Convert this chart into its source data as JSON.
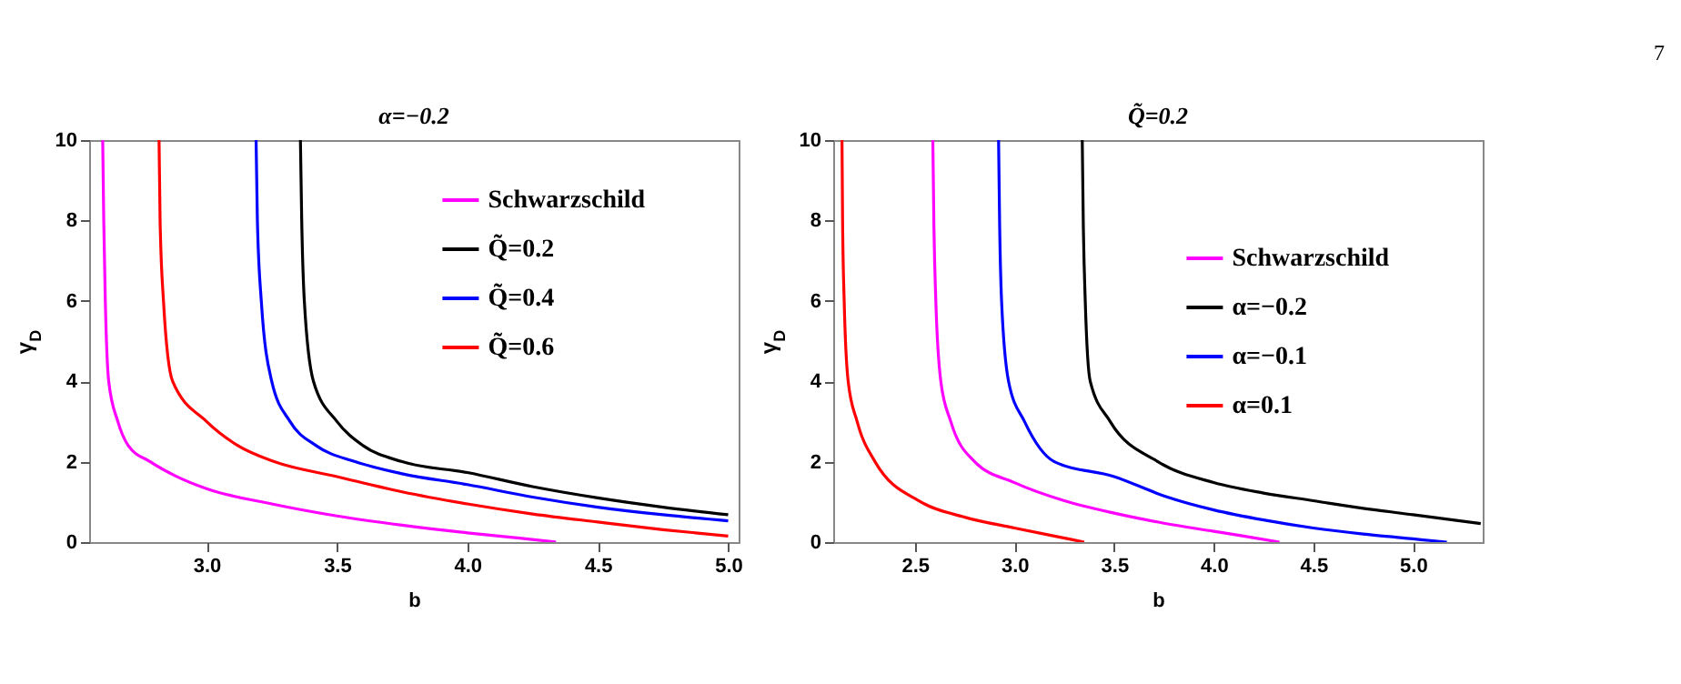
{
  "chart_data": [
    {
      "type": "line",
      "title": "α=−0.2",
      "xlabel": "b",
      "ylabel": "γ$_{D}$",
      "xlim": [
        2.55,
        5.04
      ],
      "ylim": [
        0,
        10
      ],
      "xticks": [
        {
          "value": 3,
          "label": "3.0"
        },
        {
          "value": 3.5,
          "label": "3.5"
        },
        {
          "value": 4,
          "label": "4.0"
        },
        {
          "value": 4.5,
          "label": "4.5"
        },
        {
          "value": 5,
          "label": "5.0"
        }
      ],
      "yticks": [
        0,
        2,
        4,
        6,
        8,
        10
      ],
      "grid": false,
      "legend": "top right",
      "series": [
        {
          "name": "Schwarzschild",
          "color": "#ff00ff",
          "x": [
            2.602,
            2.606,
            2.612,
            2.625,
            2.66,
            2.7,
            2.784,
            2.88,
            3.0,
            3.25,
            3.5,
            3.75,
            4.0,
            4.2,
            4.34
          ],
          "values": [
            10,
            8,
            6,
            4,
            3,
            2.4,
            2.0,
            1.65,
            1.33,
            0.95,
            0.65,
            0.42,
            0.23,
            0.1,
            0
          ]
        },
        {
          "name": "Q̃=0.2",
          "color": "#000000",
          "x": [
            3.36,
            3.365,
            3.375,
            3.41,
            3.5,
            3.6,
            3.75,
            4.0,
            4.25,
            4.5,
            4.75,
            5.0
          ],
          "values": [
            10,
            8,
            6,
            4,
            3,
            2.4,
            2.0,
            1.73,
            1.38,
            1.1,
            0.87,
            0.68
          ]
        },
        {
          "name": "Q̃=0.4",
          "color": "#0000ff",
          "x": [
            3.19,
            3.195,
            3.21,
            3.25,
            3.32,
            3.42,
            3.57,
            3.75,
            4.0,
            4.25,
            4.5,
            4.75,
            5.0
          ],
          "values": [
            10,
            8,
            6,
            4,
            3,
            2.4,
            2.0,
            1.7,
            1.43,
            1.12,
            0.87,
            0.68,
            0.53
          ]
        },
        {
          "name": "Q̃=0.6",
          "color": "#ff0000",
          "x": [
            2.818,
            2.822,
            2.835,
            2.87,
            3.0,
            3.12,
            3.26,
            3.5,
            3.75,
            4.0,
            4.25,
            4.5,
            4.75,
            5.0
          ],
          "values": [
            10,
            8,
            6,
            4,
            3,
            2.4,
            2.0,
            1.63,
            1.25,
            0.95,
            0.7,
            0.5,
            0.31,
            0.15
          ]
        }
      ]
    },
    {
      "type": "line",
      "title": "Q̃=0.2",
      "xlabel": "b",
      "ylabel": "γ$_{D}$",
      "xlim": [
        2.09,
        5.35
      ],
      "ylim": [
        0,
        10
      ],
      "xticks": [
        {
          "value": 2.5,
          "label": "2.5"
        },
        {
          "value": 3,
          "label": "3.0"
        },
        {
          "value": 3.5,
          "label": "3.5"
        },
        {
          "value": 4,
          "label": "4.0"
        },
        {
          "value": 4.5,
          "label": "4.5"
        },
        {
          "value": 5,
          "label": "5.0"
        }
      ],
      "yticks": [
        0,
        2,
        4,
        6,
        8,
        10
      ],
      "grid": false,
      "legend": "right",
      "annotations": [
        "7"
      ],
      "series": [
        {
          "name": "Schwarzschild",
          "color": "#ff00ff",
          "x": [
            2.59,
            2.595,
            2.605,
            2.63,
            2.68,
            2.8,
            3.0,
            3.25,
            3.5,
            3.75,
            4.0,
            4.15,
            4.33
          ],
          "values": [
            10,
            8,
            6,
            4,
            3,
            2.0,
            1.48,
            1.03,
            0.72,
            0.47,
            0.27,
            0.15,
            0
          ]
        },
        {
          "name": "α=−0.2",
          "color": "#000000",
          "x": [
            3.34,
            3.345,
            3.355,
            3.38,
            3.48,
            3.72,
            4.0,
            4.25,
            4.5,
            4.75,
            5.0,
            5.34
          ],
          "values": [
            10,
            8,
            6,
            4,
            3,
            2.0,
            1.48,
            1.22,
            1.03,
            0.84,
            0.68,
            0.46
          ]
        },
        {
          "name": "α=−0.1",
          "color": "#0000ff",
          "x": [
            2.92,
            2.925,
            2.935,
            2.97,
            3.05,
            3.2,
            3.5,
            3.75,
            4.0,
            4.25,
            4.5,
            4.75,
            5.0,
            5.17
          ],
          "values": [
            10,
            8,
            6,
            4,
            3,
            2.0,
            1.63,
            1.15,
            0.8,
            0.55,
            0.35,
            0.2,
            0.08,
            0
          ]
        },
        {
          "name": "α=0.1",
          "color": "#ff0000",
          "x": [
            2.134,
            2.137,
            2.145,
            2.165,
            2.21,
            2.3,
            2.53,
            2.75,
            3.0,
            3.2,
            3.35
          ],
          "values": [
            10,
            8,
            6,
            4,
            3,
            2.0,
            1.0,
            0.62,
            0.35,
            0.15,
            0
          ]
        }
      ]
    }
  ]
}
